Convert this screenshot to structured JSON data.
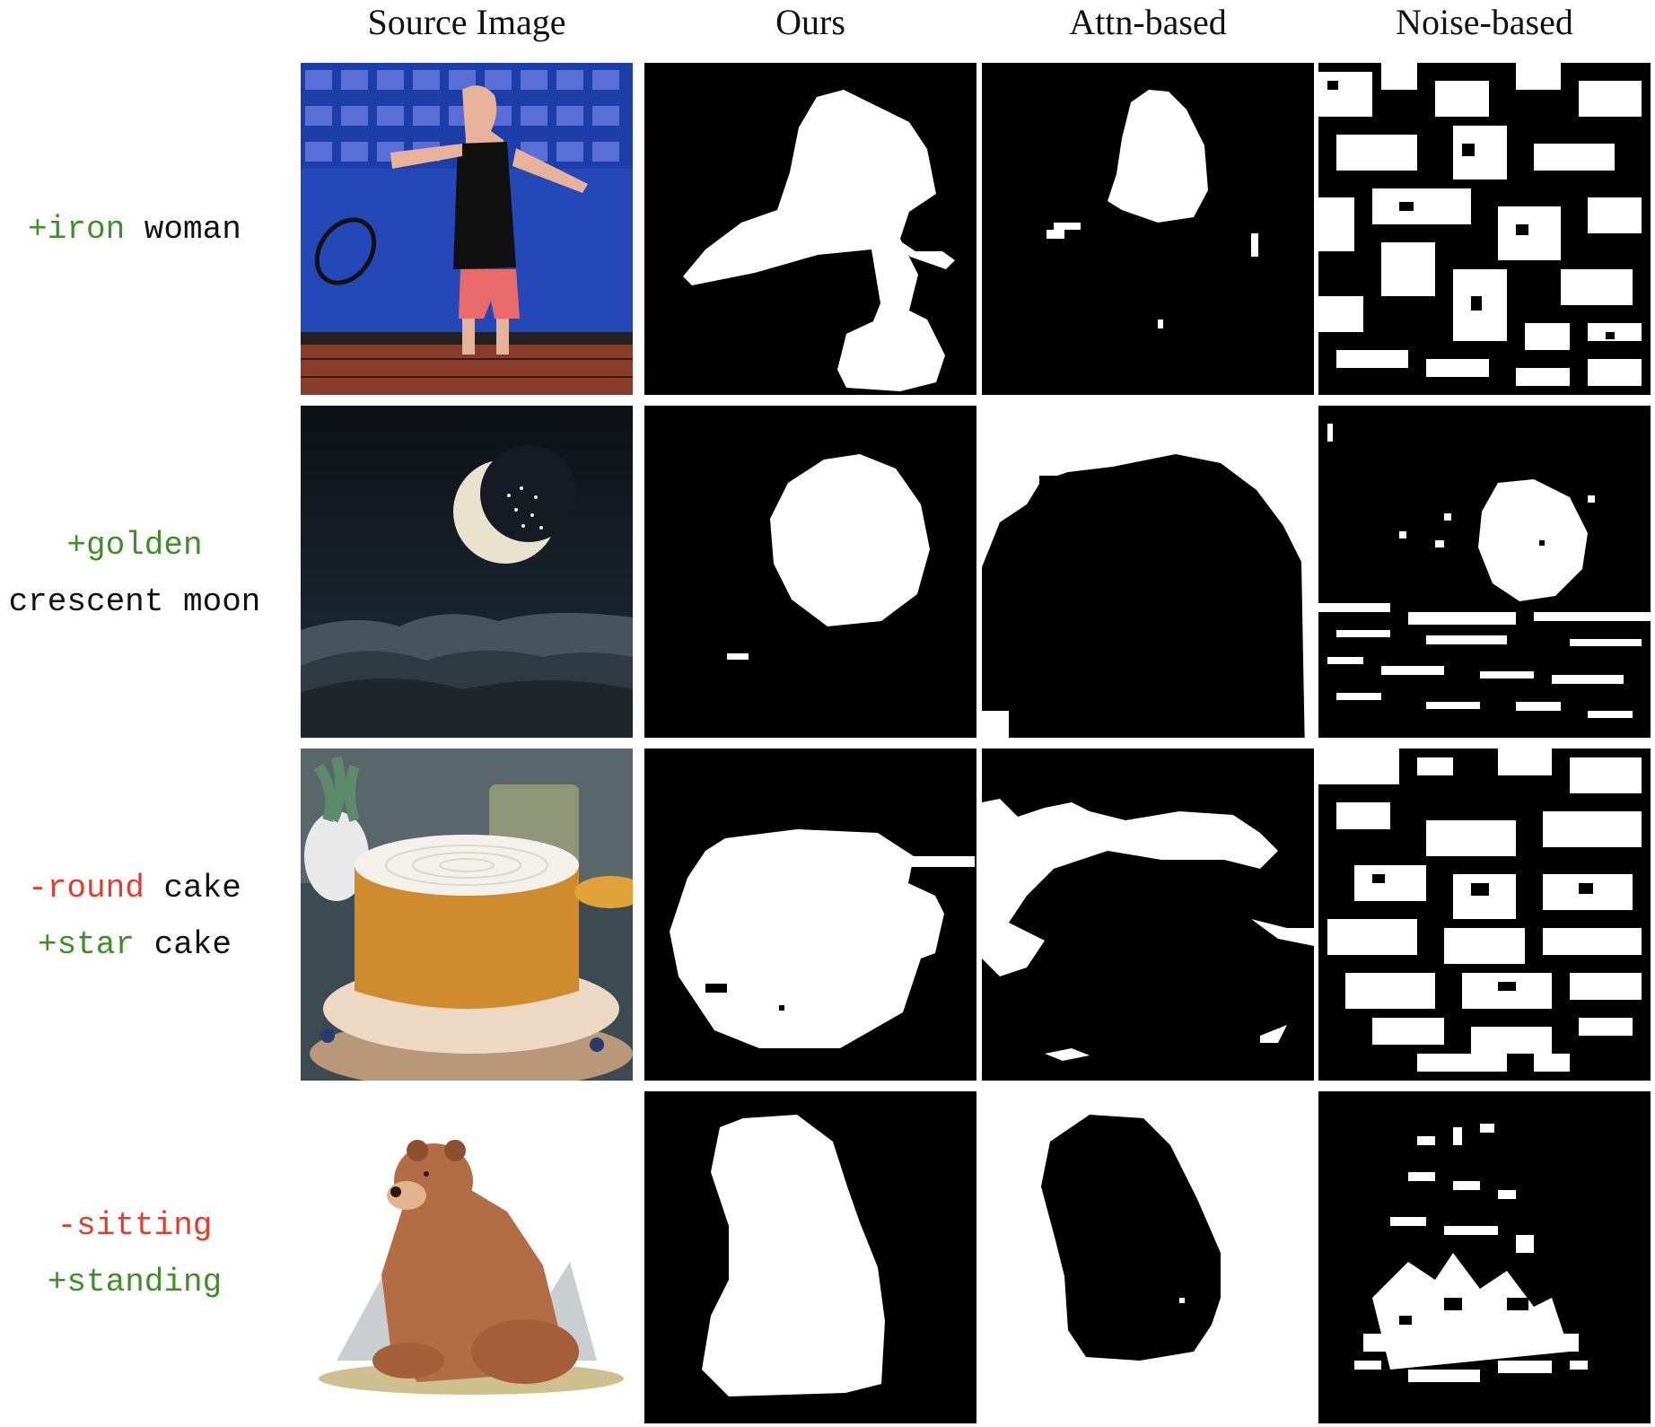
{
  "headers": {
    "source": "Source Image",
    "ours": "Ours",
    "attn": "Attn-based",
    "noise": "Noise-based"
  },
  "rows": [
    {
      "label_lines": [
        [
          {
            "t": "+iron",
            "k": "add"
          },
          {
            "t": " woman",
            "k": "plain"
          }
        ]
      ],
      "source_image": "tennis-player-photo"
    },
    {
      "label_lines": [
        [
          {
            "t": "+golden",
            "k": "add"
          }
        ],
        [
          {
            "t": "crescent moon",
            "k": "plain"
          }
        ]
      ],
      "source_image": "crescent-moon-night-photo"
    },
    {
      "label_lines": [
        [
          {
            "t": "-round",
            "k": "rem"
          },
          {
            "t": " cake",
            "k": "plain"
          }
        ],
        [
          {
            "t": "+star",
            "k": "add"
          },
          {
            "t": " cake",
            "k": "plain"
          }
        ]
      ],
      "source_image": "cake-photo"
    },
    {
      "label_lines": [
        [
          {
            "t": "-sitting",
            "k": "rem"
          }
        ],
        [
          {
            "t": "+standing",
            "k": "add"
          }
        ]
      ],
      "source_image": "bear-illustration"
    }
  ],
  "colors": {
    "add": "#3e8f2a",
    "remove": "#e23c2b",
    "mask_fg": "#ffffff",
    "mask_bg": "#000000"
  }
}
